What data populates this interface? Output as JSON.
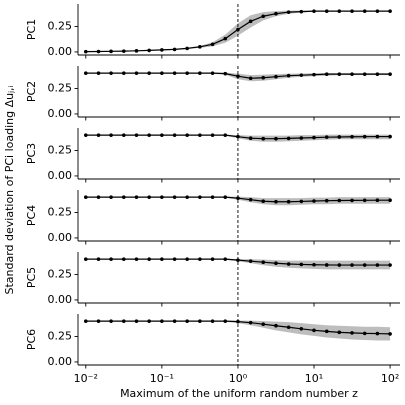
{
  "chart_data": {
    "type": "line",
    "xlabel": "Maximum of the uniform random number z",
    "ylabel": "Standard deviation of PCi loading Δuⱼ,ᵢ",
    "log_x": true,
    "x": [
      0.01,
      0.0147,
      0.0215,
      0.0316,
      0.0464,
      0.0681,
      0.1,
      0.147,
      0.215,
      0.316,
      0.464,
      0.681,
      1,
      1.47,
      2.15,
      3.16,
      4.64,
      6.81,
      10,
      14.7,
      21.5,
      31.6,
      46.4,
      68.1,
      100
    ],
    "xlim": [
      0.0079,
      135
    ],
    "xticks": [
      {
        "value": 0.01,
        "label": "10⁻²"
      },
      {
        "value": 0.1,
        "label": "10⁻¹"
      },
      {
        "value": 1,
        "label": "10⁰"
      },
      {
        "value": 10,
        "label": "10¹"
      },
      {
        "value": 100,
        "label": "10²"
      }
    ],
    "ylim": [
      -0.03,
      0.47
    ],
    "yticks": [
      {
        "value": 0,
        "label": "0.00"
      },
      {
        "value": 0.25,
        "label": "0.25"
      }
    ],
    "vline": 1,
    "line_color": "#000000",
    "band_color": "#bdbdbd",
    "panels": [
      {
        "ylabel": "PC1",
        "values": [
          0.003,
          0.004,
          0.006,
          0.008,
          0.011,
          0.015,
          0.02,
          0.025,
          0.035,
          0.05,
          0.075,
          0.13,
          0.22,
          0.3,
          0.35,
          0.375,
          0.39,
          0.395,
          0.4,
          0.4,
          0.4,
          0.4,
          0.4,
          0.4,
          0.4
        ],
        "lower": [
          0.001,
          0.002,
          0.004,
          0.006,
          0.009,
          0.013,
          0.015,
          0.02,
          0.03,
          0.04,
          0.055,
          0.09,
          0.16,
          0.24,
          0.31,
          0.35,
          0.375,
          0.385,
          0.395,
          0.395,
          0.395,
          0.395,
          0.395,
          0.395,
          0.395
        ],
        "upper": [
          0.005,
          0.006,
          0.008,
          0.01,
          0.013,
          0.017,
          0.025,
          0.03,
          0.04,
          0.06,
          0.095,
          0.17,
          0.28,
          0.36,
          0.39,
          0.4,
          0.405,
          0.405,
          0.405,
          0.405,
          0.405,
          0.405,
          0.405,
          0.405,
          0.405
        ]
      },
      {
        "ylabel": "PC2",
        "values": [
          0.4,
          0.4,
          0.4,
          0.4,
          0.4,
          0.4,
          0.4,
          0.4,
          0.4,
          0.4,
          0.4,
          0.395,
          0.37,
          0.35,
          0.355,
          0.365,
          0.375,
          0.38,
          0.385,
          0.39,
          0.39,
          0.39,
          0.39,
          0.39,
          0.39
        ],
        "lower": [
          0.395,
          0.395,
          0.395,
          0.395,
          0.395,
          0.395,
          0.395,
          0.395,
          0.395,
          0.395,
          0.395,
          0.385,
          0.34,
          0.32,
          0.325,
          0.34,
          0.355,
          0.365,
          0.37,
          0.375,
          0.38,
          0.38,
          0.38,
          0.38,
          0.38
        ],
        "upper": [
          0.405,
          0.405,
          0.405,
          0.405,
          0.405,
          0.405,
          0.405,
          0.405,
          0.405,
          0.405,
          0.405,
          0.405,
          0.395,
          0.38,
          0.385,
          0.39,
          0.395,
          0.395,
          0.4,
          0.4,
          0.4,
          0.4,
          0.4,
          0.4,
          0.4
        ]
      },
      {
        "ylabel": "PC3",
        "values": [
          0.4,
          0.4,
          0.4,
          0.4,
          0.4,
          0.4,
          0.4,
          0.4,
          0.4,
          0.4,
          0.4,
          0.4,
          0.385,
          0.37,
          0.365,
          0.365,
          0.368,
          0.372,
          0.376,
          0.38,
          0.382,
          0.384,
          0.385,
          0.386,
          0.386
        ],
        "lower": [
          0.395,
          0.395,
          0.395,
          0.395,
          0.395,
          0.395,
          0.395,
          0.395,
          0.395,
          0.395,
          0.395,
          0.395,
          0.37,
          0.345,
          0.335,
          0.335,
          0.34,
          0.345,
          0.35,
          0.355,
          0.36,
          0.36,
          0.36,
          0.36,
          0.36
        ],
        "upper": [
          0.405,
          0.405,
          0.405,
          0.405,
          0.405,
          0.405,
          0.405,
          0.405,
          0.405,
          0.405,
          0.405,
          0.405,
          0.4,
          0.395,
          0.395,
          0.395,
          0.395,
          0.4,
          0.4,
          0.405,
          0.405,
          0.405,
          0.405,
          0.405,
          0.405
        ]
      },
      {
        "ylabel": "PC4",
        "values": [
          0.4,
          0.4,
          0.4,
          0.4,
          0.4,
          0.4,
          0.4,
          0.4,
          0.4,
          0.4,
          0.4,
          0.4,
          0.39,
          0.375,
          0.36,
          0.355,
          0.355,
          0.358,
          0.362,
          0.365,
          0.367,
          0.368,
          0.369,
          0.37,
          0.37
        ],
        "lower": [
          0.395,
          0.395,
          0.395,
          0.395,
          0.395,
          0.395,
          0.395,
          0.395,
          0.395,
          0.395,
          0.395,
          0.395,
          0.375,
          0.35,
          0.33,
          0.32,
          0.32,
          0.325,
          0.33,
          0.33,
          0.335,
          0.335,
          0.335,
          0.335,
          0.335
        ],
        "upper": [
          0.405,
          0.405,
          0.405,
          0.405,
          0.405,
          0.405,
          0.405,
          0.405,
          0.405,
          0.405,
          0.405,
          0.405,
          0.405,
          0.4,
          0.39,
          0.39,
          0.39,
          0.39,
          0.395,
          0.395,
          0.4,
          0.4,
          0.4,
          0.4,
          0.4
        ]
      },
      {
        "ylabel": "PC5",
        "values": [
          0.4,
          0.4,
          0.4,
          0.4,
          0.4,
          0.4,
          0.4,
          0.4,
          0.4,
          0.4,
          0.4,
          0.4,
          0.39,
          0.38,
          0.37,
          0.36,
          0.352,
          0.348,
          0.345,
          0.343,
          0.342,
          0.342,
          0.342,
          0.342,
          0.342
        ],
        "lower": [
          0.395,
          0.395,
          0.395,
          0.395,
          0.395,
          0.395,
          0.395,
          0.395,
          0.395,
          0.395,
          0.395,
          0.395,
          0.38,
          0.36,
          0.34,
          0.325,
          0.315,
          0.31,
          0.305,
          0.3,
          0.3,
          0.3,
          0.3,
          0.3,
          0.3
        ],
        "upper": [
          0.405,
          0.405,
          0.405,
          0.405,
          0.405,
          0.405,
          0.405,
          0.405,
          0.405,
          0.405,
          0.405,
          0.405,
          0.4,
          0.4,
          0.395,
          0.39,
          0.385,
          0.385,
          0.385,
          0.385,
          0.385,
          0.385,
          0.385,
          0.385,
          0.385
        ]
      },
      {
        "ylabel": "PC6",
        "values": [
          0.4,
          0.4,
          0.4,
          0.4,
          0.4,
          0.4,
          0.4,
          0.4,
          0.4,
          0.4,
          0.4,
          0.4,
          0.395,
          0.385,
          0.37,
          0.355,
          0.34,
          0.325,
          0.31,
          0.3,
          0.29,
          0.285,
          0.28,
          0.278,
          0.275
        ],
        "lower": [
          0.395,
          0.395,
          0.395,
          0.395,
          0.395,
          0.395,
          0.395,
          0.395,
          0.395,
          0.395,
          0.395,
          0.395,
          0.38,
          0.36,
          0.335,
          0.31,
          0.29,
          0.27,
          0.255,
          0.24,
          0.23,
          0.22,
          0.215,
          0.21,
          0.21
        ],
        "upper": [
          0.405,
          0.405,
          0.405,
          0.405,
          0.405,
          0.405,
          0.405,
          0.405,
          0.405,
          0.405,
          0.405,
          0.405,
          0.405,
          0.405,
          0.4,
          0.395,
          0.39,
          0.38,
          0.37,
          0.36,
          0.355,
          0.35,
          0.345,
          0.345,
          0.34
        ]
      }
    ]
  }
}
